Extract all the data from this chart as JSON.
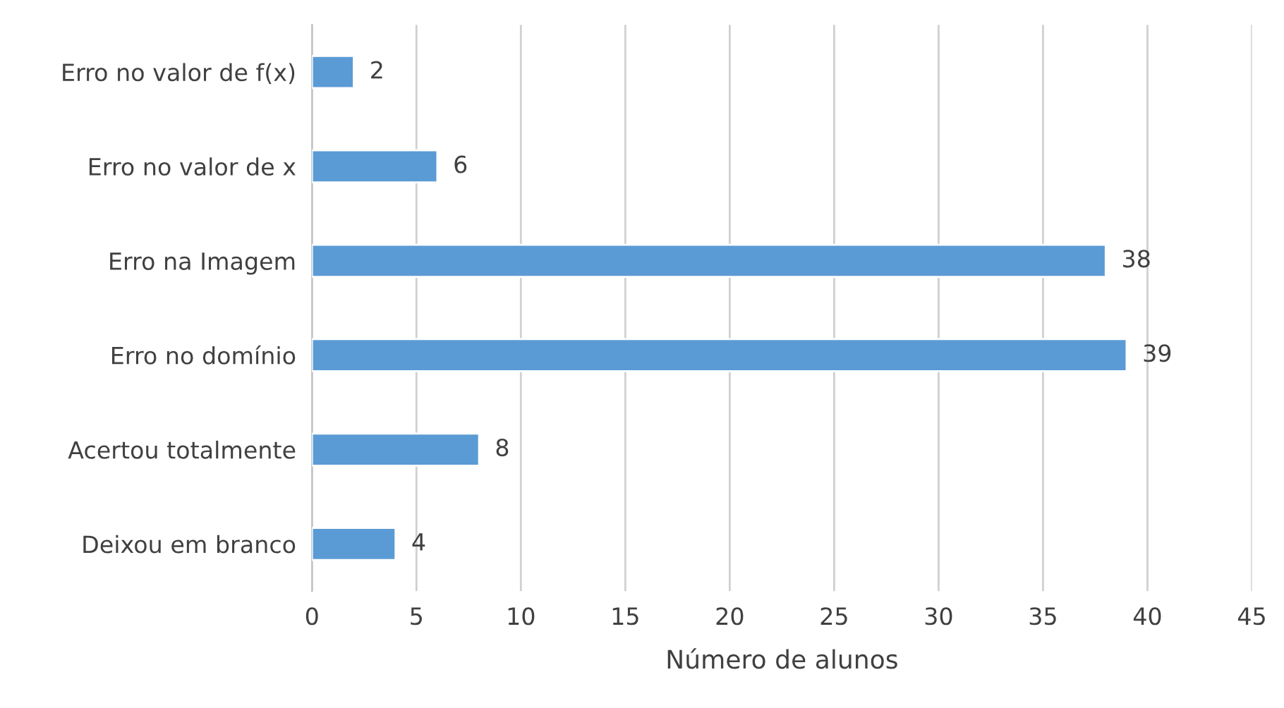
{
  "chart_data": {
    "type": "bar",
    "orientation": "horizontal",
    "xlabel": "Número de alunos",
    "categories": [
      "Erro no valor de f(x)",
      "Erro no valor de x",
      "Erro na Imagem",
      "Erro no domínio",
      "Acertou totalmente",
      "Deixou em branco"
    ],
    "values": [
      2,
      6,
      38,
      39,
      8,
      4
    ],
    "color": "#5b9bd5",
    "xlim": [
      0,
      45
    ],
    "xticks": [
      0,
      5,
      10,
      15,
      20,
      25,
      30,
      35,
      40,
      45
    ],
    "grid": "x",
    "data_labels": true
  }
}
